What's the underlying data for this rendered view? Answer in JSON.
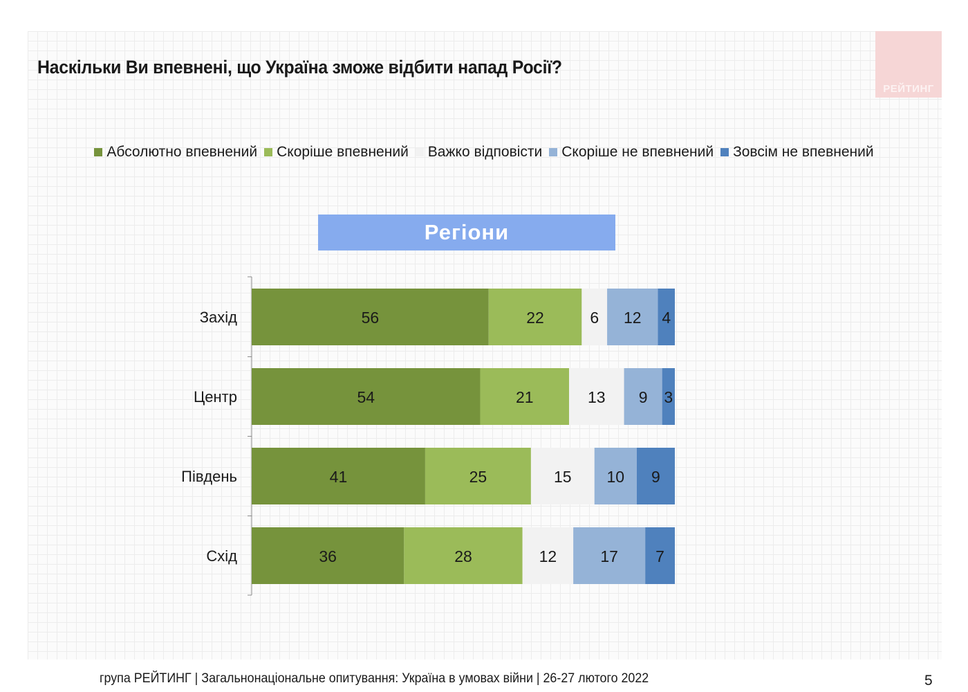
{
  "title": "Наскільки Ви впевнені, що Україна зможе відбити напад Росії?",
  "logo_text": "РЕЙТИНГ",
  "section_label": "Регіони",
  "footer_text": "група РЕЙТИНГ | Загальнонаціональне опитування: Україна в умовах війни | 26-27 лютого 2022",
  "page_number": "5",
  "colors": {
    "accent_banner": "#86abee",
    "logo_bg": "#f6d6d6"
  },
  "chart_data": {
    "type": "bar",
    "orientation": "horizontal",
    "stacked": true,
    "categories": [
      "Захід",
      "Центр",
      "Південь",
      "Схід"
    ],
    "series": [
      {
        "name": "Абсолютно впевнений",
        "color": "#76933c",
        "label_color": "#1a1a1a",
        "values": [
          56,
          54,
          41,
          36
        ]
      },
      {
        "name": "Скоріше впевнений",
        "color": "#9bbb59",
        "label_color": "#1a1a1a",
        "values": [
          22,
          21,
          25,
          28
        ]
      },
      {
        "name": "Важко відповісти",
        "color": "#f2f2f2",
        "label_color": "#1a1a1a",
        "values": [
          6,
          13,
          15,
          12
        ]
      },
      {
        "name": "Скоріше не впевнений",
        "color": "#95b3d7",
        "label_color": "#1a1a1a",
        "values": [
          12,
          9,
          10,
          17
        ]
      },
      {
        "name": "Зовсім не впевнений",
        "color": "#4f81bd",
        "label_color": "#1a1a1a",
        "values": [
          4,
          3,
          9,
          7
        ]
      }
    ],
    "legend_position": "top",
    "xlim": [
      0,
      100
    ],
    "grid": false
  }
}
